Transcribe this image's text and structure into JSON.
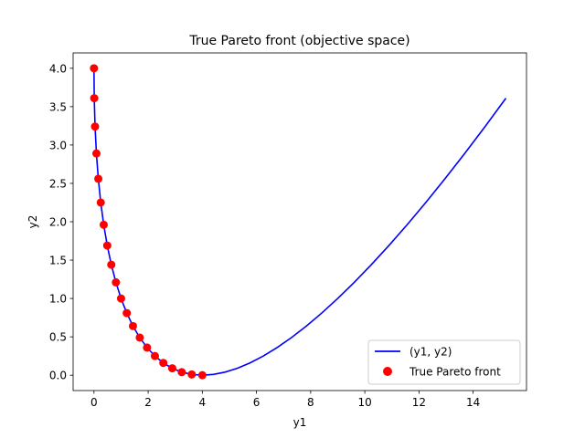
{
  "chart_data": {
    "type": "line",
    "title": "True Pareto front (objective space)",
    "xlabel": "y1",
    "ylabel": "y2",
    "xlim": [
      -0.77,
      15.97
    ],
    "ylim": [
      -0.2,
      4.2
    ],
    "xticks": [
      0,
      2,
      4,
      6,
      8,
      10,
      12,
      14
    ],
    "yticks": [
      0.0,
      0.5,
      1.0,
      1.5,
      2.0,
      2.5,
      3.0,
      3.5,
      4.0
    ],
    "grid": false,
    "legend": "lower-right",
    "series": [
      {
        "name": "(y1, y2)",
        "kind": "line",
        "color": "#0000ff",
        "x": [
          0.0,
          0.01,
          0.04,
          0.09,
          0.16,
          0.25,
          0.36,
          0.49,
          0.64,
          0.81,
          1.0,
          1.21,
          1.44,
          1.69,
          1.96,
          2.25,
          2.56,
          2.89,
          3.24,
          3.61,
          4.0,
          4.41,
          4.84,
          5.29,
          5.76,
          6.25,
          6.76,
          7.29,
          7.84,
          8.41,
          9.0,
          9.61,
          10.24,
          10.89,
          11.56,
          12.25,
          12.96,
          13.69,
          14.44,
          15.21
        ],
        "y": [
          4.0,
          3.61,
          3.24,
          2.89,
          2.56,
          2.25,
          1.96,
          1.69,
          1.44,
          1.21,
          1.0,
          0.81,
          0.64,
          0.49,
          0.36,
          0.25,
          0.16,
          0.09,
          0.04,
          0.01,
          0.0,
          0.01,
          0.04,
          0.09,
          0.16,
          0.25,
          0.36,
          0.49,
          0.64,
          0.81,
          1.0,
          1.21,
          1.44,
          1.69,
          1.96,
          2.25,
          2.56,
          2.89,
          3.24,
          3.61
        ]
      },
      {
        "name": "True Pareto front",
        "kind": "scatter",
        "color": "#ff0000",
        "x": [
          0.0,
          0.01,
          0.04,
          0.09,
          0.16,
          0.25,
          0.36,
          0.49,
          0.64,
          0.81,
          1.0,
          1.21,
          1.44,
          1.69,
          1.96,
          2.25,
          2.56,
          2.89,
          3.24,
          3.61,
          4.0
        ],
        "y": [
          4.0,
          3.61,
          3.24,
          2.89,
          2.56,
          2.25,
          1.96,
          1.69,
          1.44,
          1.21,
          1.0,
          0.81,
          0.64,
          0.49,
          0.36,
          0.25,
          0.16,
          0.09,
          0.04,
          0.01,
          0.0
        ]
      }
    ]
  }
}
